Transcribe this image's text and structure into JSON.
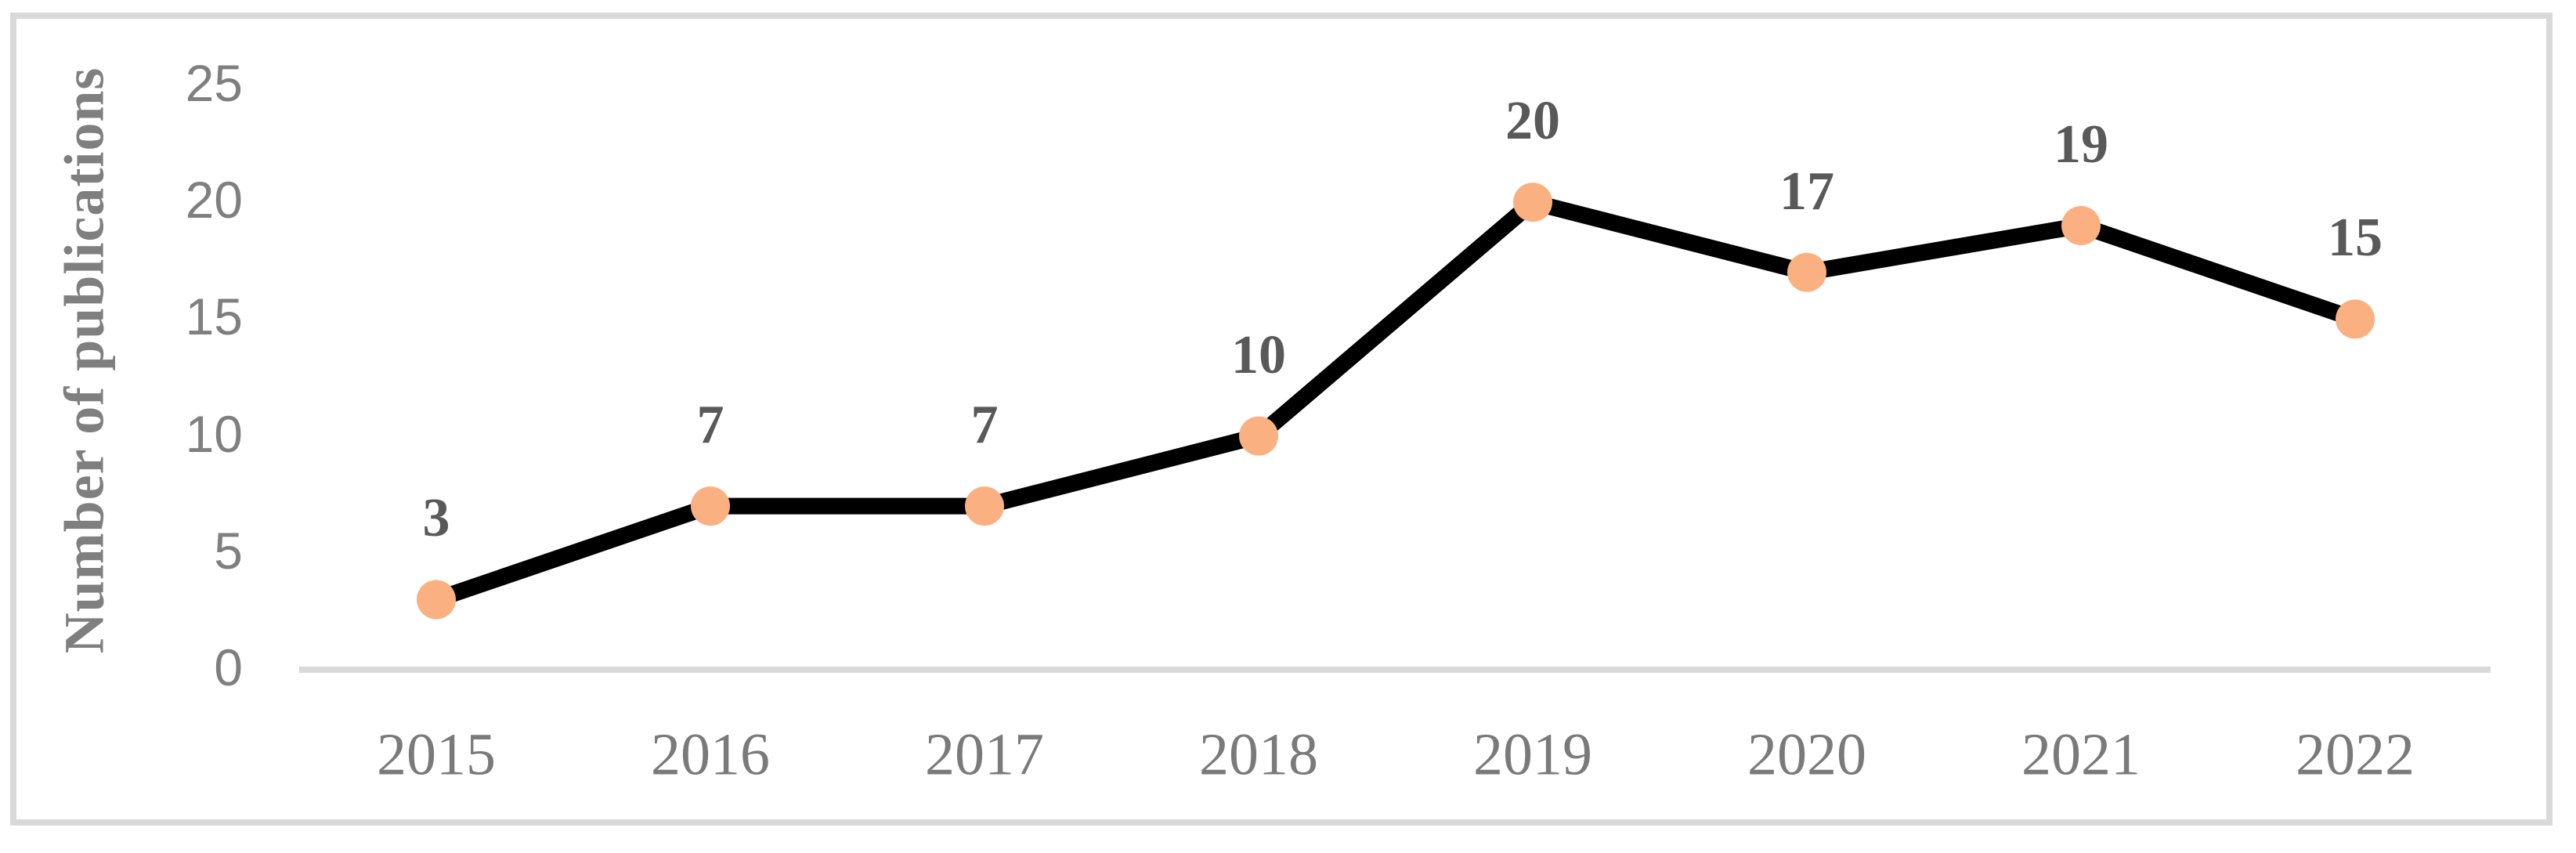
{
  "chart_data": {
    "type": "line",
    "categories": [
      "2015",
      "2016",
      "2017",
      "2018",
      "2019",
      "2020",
      "2021",
      "2022"
    ],
    "series": [
      {
        "name": "Number of publications",
        "values": [
          3,
          7,
          7,
          10,
          20,
          17,
          19,
          15
        ]
      }
    ],
    "data_labels": [
      "3",
      "7",
      "7",
      "10",
      "20",
      "17",
      "19",
      "15"
    ],
    "title": "",
    "xlabel": "",
    "ylabel": "Number of publications",
    "ylim": [
      0,
      25
    ],
    "yticks": [
      0,
      5,
      10,
      15,
      20,
      25
    ],
    "grid": false,
    "legend": "none",
    "colors": {
      "line": "#000000",
      "marker": "#FAB081",
      "axis_line": "#D9D9D9",
      "frame_border": "#D9D9D9",
      "tick_label": "#7F7F7F",
      "category_label": "#7A7A7A",
      "data_label": "#595959",
      "y_title": "#7F7F7F",
      "background": "#FFFFFF"
    }
  }
}
